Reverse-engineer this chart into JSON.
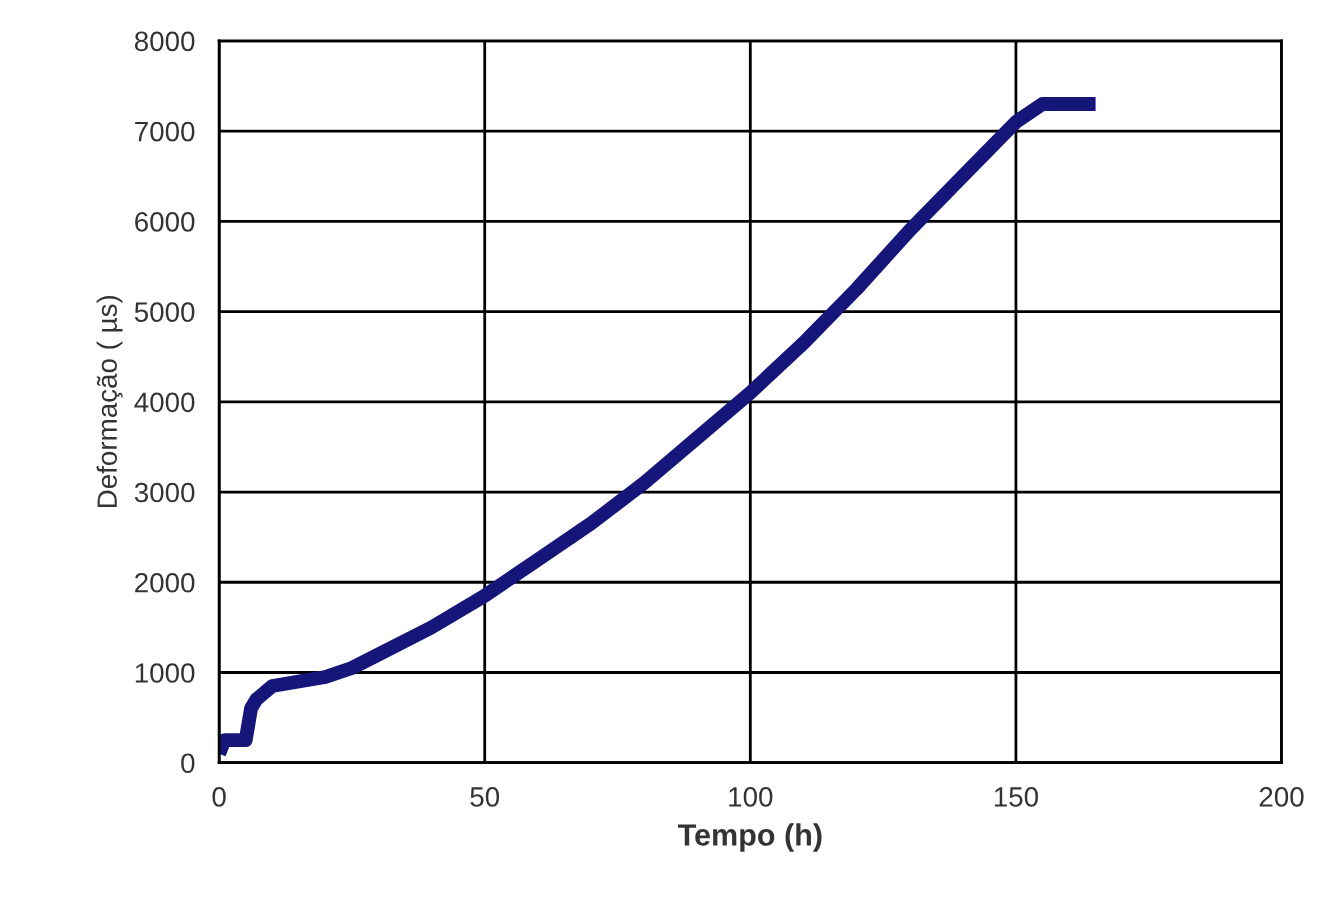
{
  "chart_data": {
    "type": "line",
    "xlabel": "Tempo (h)",
    "ylabel": "Deformação ( µs)",
    "xlim": [
      0,
      200
    ],
    "xticks": [
      0,
      50,
      100,
      150,
      200
    ],
    "ylim": [
      0,
      8000
    ],
    "yticks": [
      0,
      1000,
      2000,
      3000,
      4000,
      5000,
      6000,
      7000,
      8000
    ],
    "grid": true,
    "line_style": "solid",
    "marker": "none",
    "series": [
      {
        "color": "#16167a",
        "x": [
          0,
          1,
          2,
          5,
          6,
          7,
          10,
          15,
          20,
          25,
          30,
          40,
          50,
          60,
          70,
          80,
          90,
          100,
          110,
          120,
          130,
          140,
          150,
          155,
          165
        ],
        "values": [
          100,
          250,
          250,
          250,
          600,
          700,
          850,
          900,
          950,
          1050,
          1200,
          1500,
          1850,
          2250,
          2650,
          3100,
          3600,
          4100,
          4650,
          5250,
          5900,
          6500,
          7100,
          7300,
          7300
        ]
      }
    ]
  }
}
